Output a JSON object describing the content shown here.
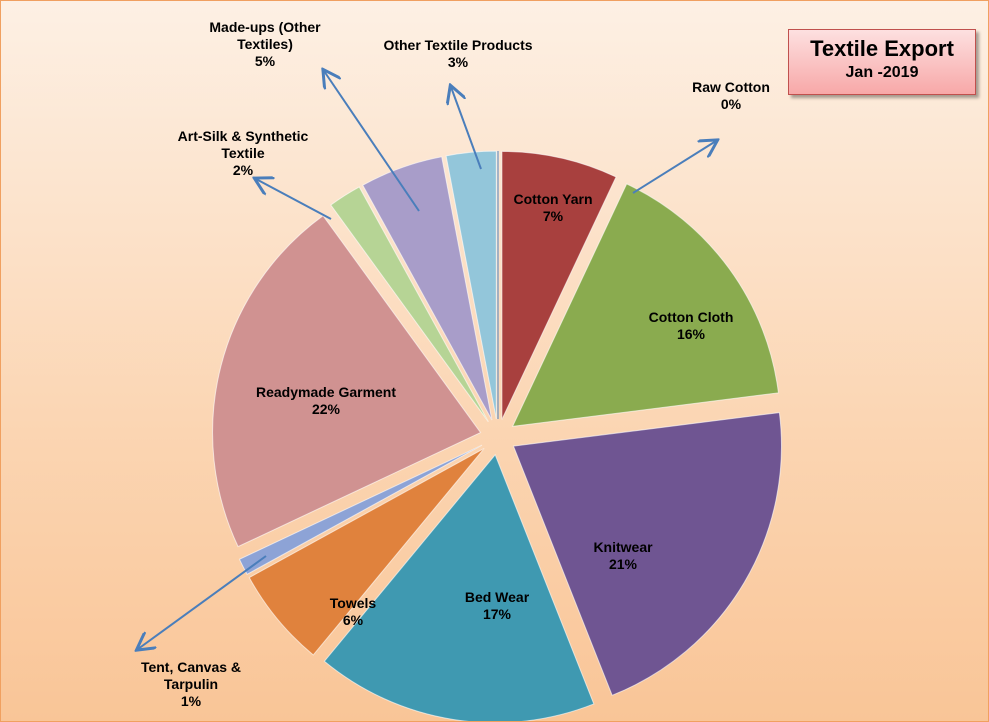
{
  "chart_data": {
    "type": "pie",
    "title": "Textile Export",
    "subtitle": "Jan -2019",
    "categories": [
      "Raw Cotton",
      "Cotton Yarn",
      "Cotton Cloth",
      "Knitwear",
      "Bed Wear",
      "Towels",
      "Tent, Canvas & Tarpulin",
      "Readymade Garment",
      "Art-Silk & Synthetic Textile",
      "Made-ups (Other Textiles)",
      "Other Textile Products"
    ],
    "values": [
      0,
      7,
      16,
      21,
      17,
      6,
      1,
      22,
      2,
      5,
      3
    ],
    "value_labels": [
      "0%",
      "7%",
      "16%",
      "21%",
      "17%",
      "6%",
      "1%",
      "22%",
      "2%",
      "5%",
      "3%"
    ],
    "colors": [
      "#4f81bd",
      "#a8403e",
      "#8aab4f",
      "#6f5592",
      "#3f99b1",
      "#e0823d",
      "#8da3d6",
      "#d09291",
      "#b6d495",
      "#a89dc9",
      "#93c6da"
    ]
  }
}
